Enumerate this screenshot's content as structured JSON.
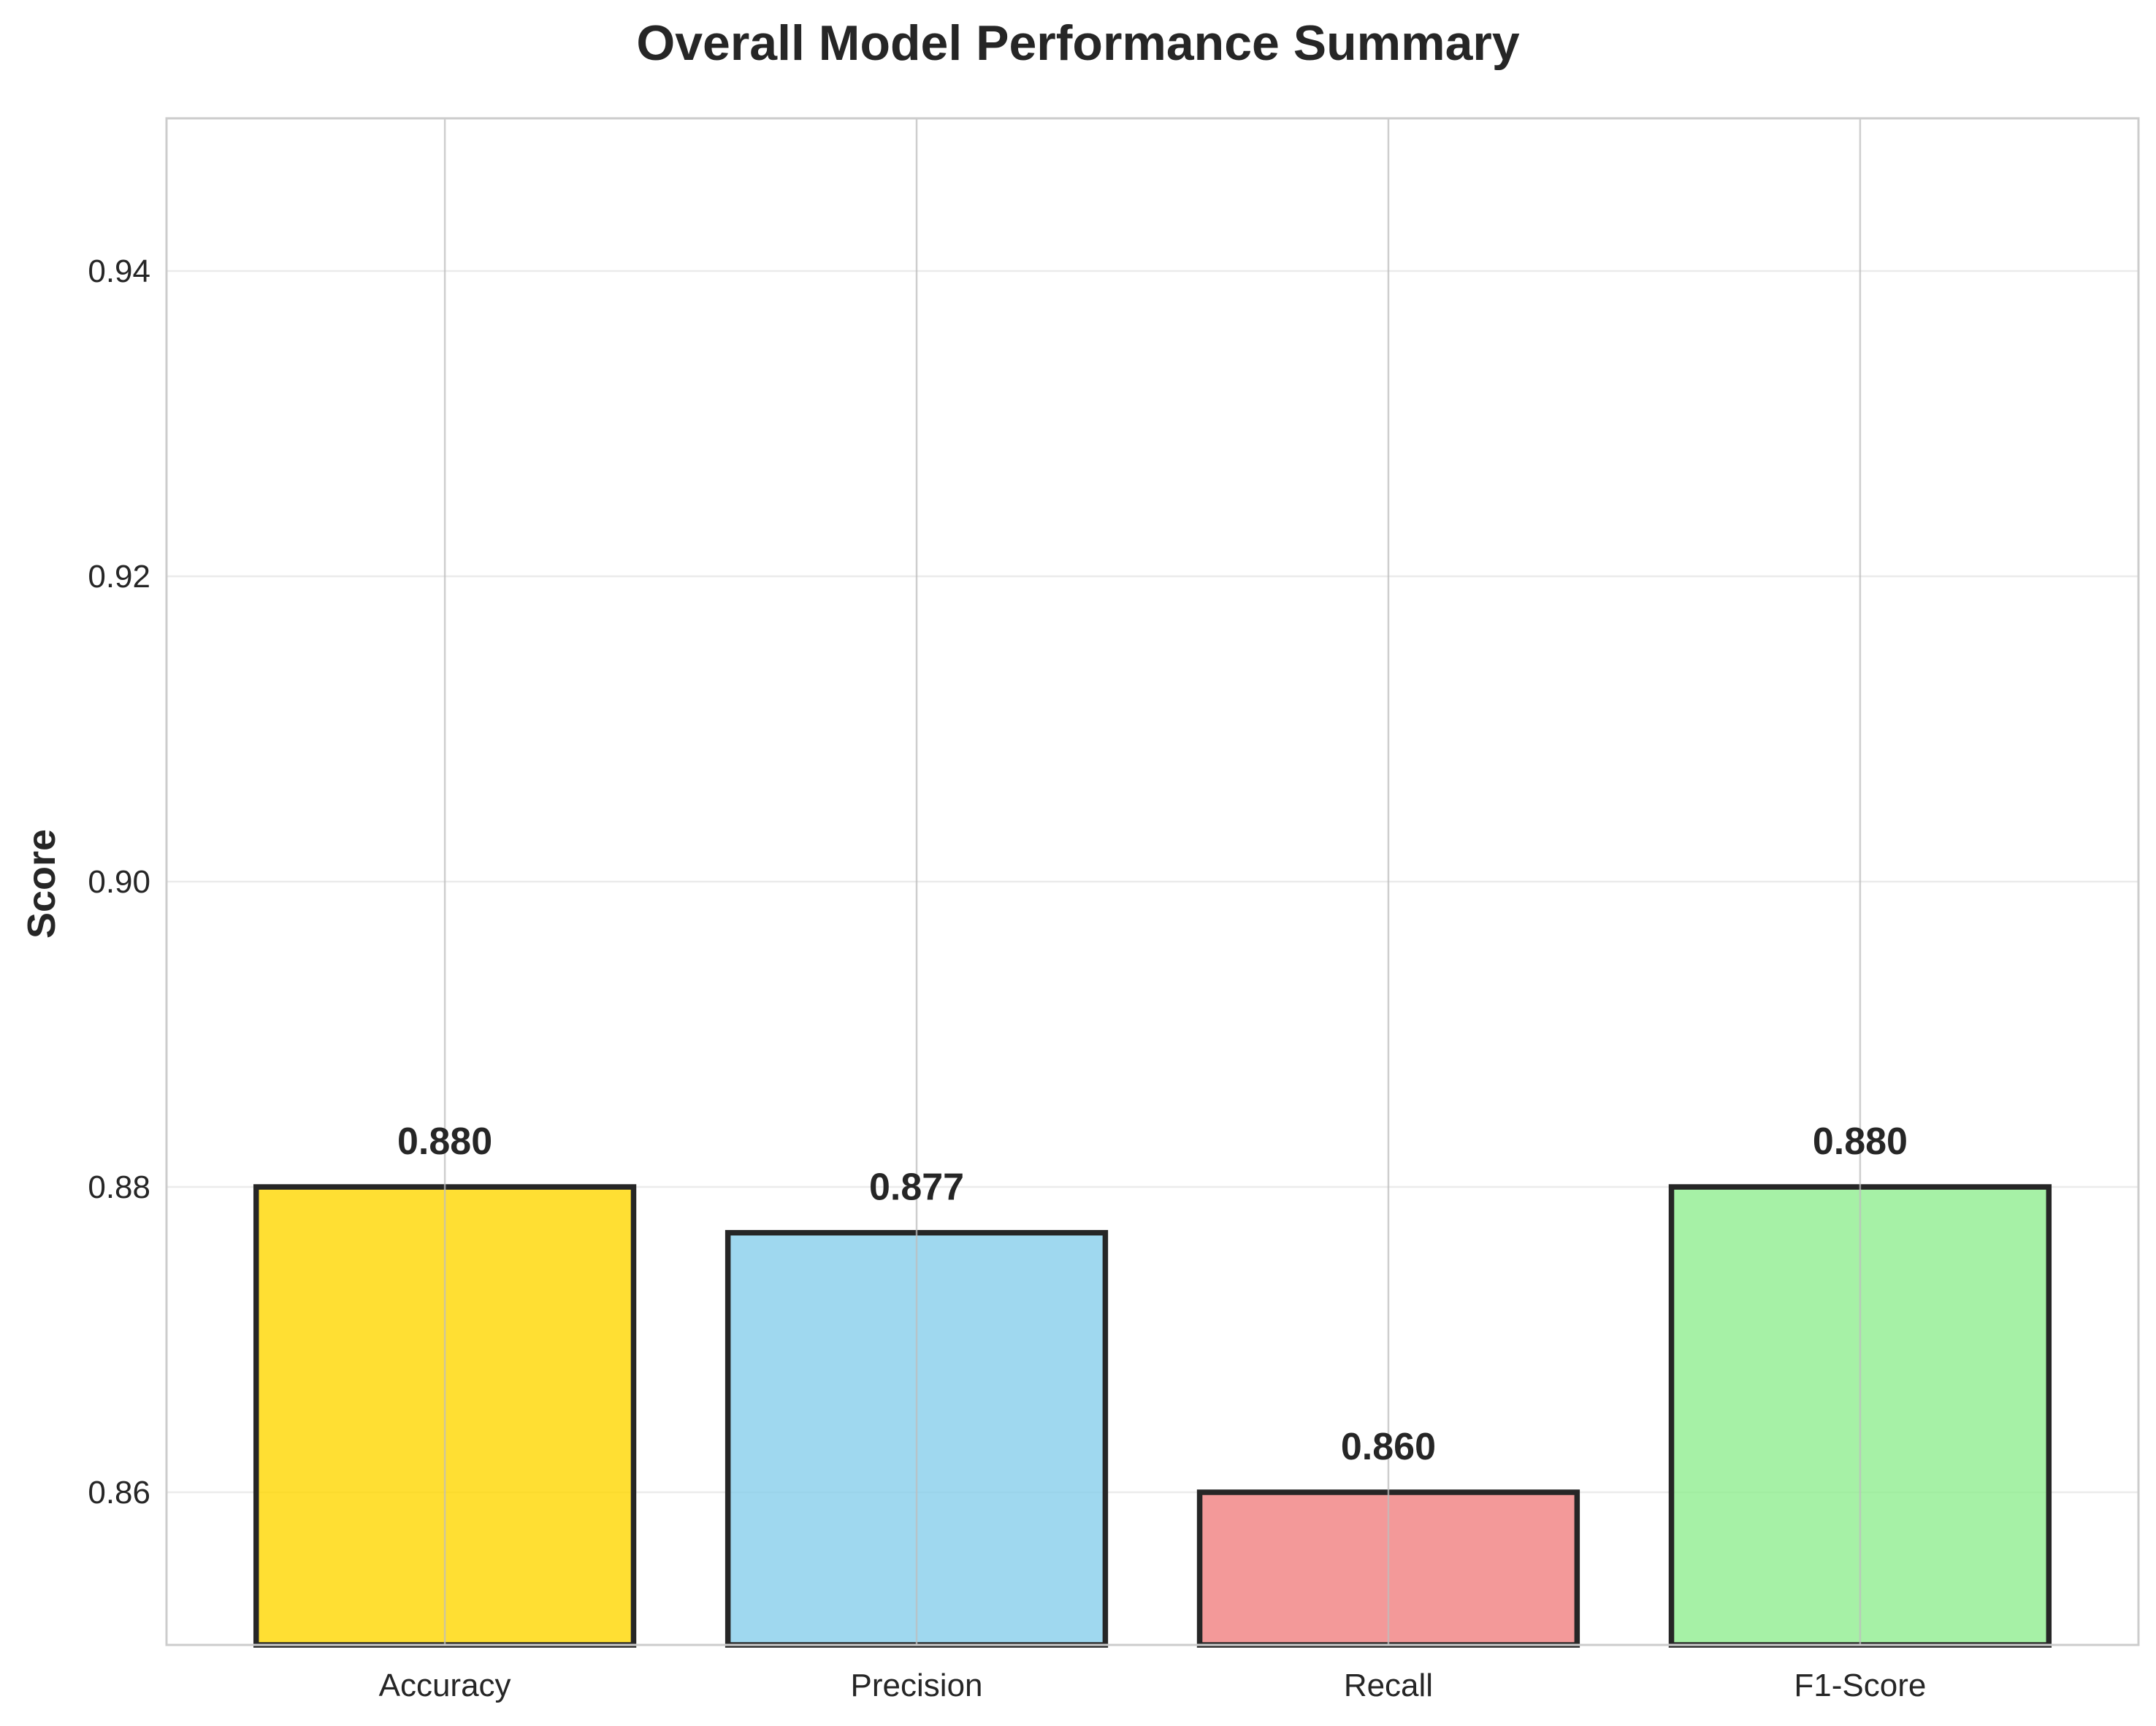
{
  "chart_data": {
    "type": "bar",
    "title": "Overall Model Performance Summary",
    "xlabel": "",
    "ylabel": "Score",
    "categories": [
      "Accuracy",
      "Precision",
      "Recall",
      "F1-Score"
    ],
    "values": [
      0.88,
      0.877,
      0.86,
      0.88
    ],
    "value_labels": [
      "0.880",
      "0.877",
      "0.860",
      "0.880"
    ],
    "colors": [
      "#FFD700",
      "#87CEEB",
      "#F08080",
      "#90EE90"
    ],
    "edge_color": "#262626",
    "ylim": [
      0.85,
      0.95
    ],
    "yticks": [
      0.86,
      0.88,
      0.9,
      0.92,
      0.94
    ],
    "ytick_labels": [
      "0.86",
      "0.88",
      "0.90",
      "0.92",
      "0.94"
    ],
    "grid": true,
    "legend": "none"
  }
}
